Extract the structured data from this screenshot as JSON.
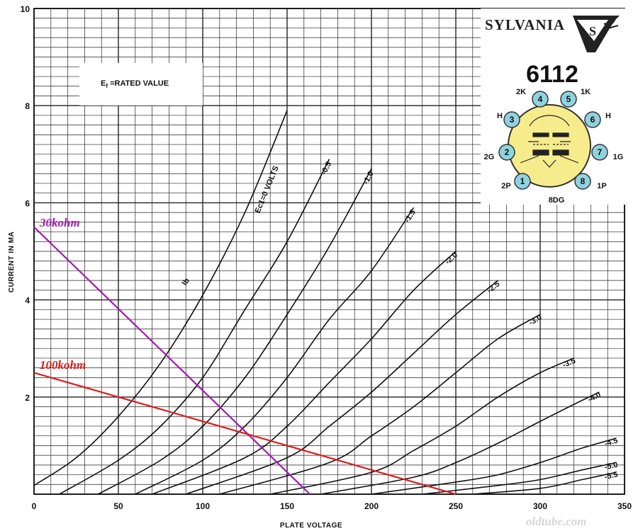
{
  "chart_data": {
    "type": "line",
    "xlabel": "PLATE VOLTAGE",
    "ylabel": "CURRENT IN MA",
    "xlim": [
      0,
      350
    ],
    "ylim": [
      0,
      10
    ],
    "x_ticks": [
      "0",
      "50",
      "100",
      "150",
      "200",
      "250",
      "300",
      "350"
    ],
    "y_ticks": [
      "2",
      "4",
      "6",
      "8",
      "10"
    ],
    "grid": true,
    "curve_family_label": "Ib",
    "note": {
      "main": "E",
      "sub": "f",
      "rest": " =RATED VALUE"
    },
    "series": [
      {
        "name": "Ec1=0 VOLTS",
        "x": [
          0,
          25,
          50,
          75,
          100,
          125,
          150
        ],
        "y": [
          0.18,
          0.75,
          1.6,
          2.7,
          4.1,
          5.8,
          7.9
        ]
      },
      {
        "name": "-0.5",
        "x": [
          15,
          50,
          75,
          100,
          125,
          150,
          175
        ],
        "y": [
          0,
          0.7,
          1.4,
          2.4,
          3.8,
          5.2,
          6.9
        ]
      },
      {
        "name": "-1.0",
        "x": [
          38,
          75,
          100,
          125,
          150,
          175,
          200
        ],
        "y": [
          0,
          0.7,
          1.4,
          2.4,
          3.7,
          5.1,
          6.7
        ]
      },
      {
        "name": "-1.5",
        "x": [
          60,
          100,
          125,
          150,
          175,
          200,
          225
        ],
        "y": [
          0,
          0.7,
          1.4,
          2.4,
          3.6,
          4.6,
          5.9
        ]
      },
      {
        "name": "-2.0",
        "x": [
          70,
          125,
          150,
          175,
          200,
          225,
          250
        ],
        "y": [
          0,
          0.75,
          1.4,
          2.3,
          3.2,
          4.2,
          5.0
        ]
      },
      {
        "name": "-2.5",
        "x": [
          90,
          150,
          175,
          200,
          225,
          250,
          275
        ],
        "y": [
          0,
          0.75,
          1.4,
          2.1,
          2.9,
          3.7,
          4.4
        ]
      },
      {
        "name": "-3.0",
        "x": [
          110,
          175,
          200,
          225,
          250,
          275,
          300
        ],
        "y": [
          0,
          0.65,
          1.2,
          1.8,
          2.5,
          3.2,
          3.7
        ]
      },
      {
        "name": "-3.5",
        "x": [
          140,
          200,
          225,
          250,
          275,
          300,
          320
        ],
        "y": [
          0,
          0.45,
          0.9,
          1.4,
          2.0,
          2.5,
          2.8
        ]
      },
      {
        "name": "-4.0",
        "x": [
          170,
          225,
          250,
          275,
          300,
          320,
          335
        ],
        "y": [
          0,
          0.35,
          0.65,
          1.05,
          1.5,
          1.85,
          2.1
        ]
      },
      {
        "name": "-4.5",
        "x": [
          200,
          250,
          275,
          300,
          325,
          345
        ],
        "y": [
          0,
          0.25,
          0.4,
          0.65,
          0.95,
          1.15
        ]
      },
      {
        "name": "-5.0",
        "x": [
          230,
          275,
          300,
          325,
          345
        ],
        "y": [
          0,
          0.18,
          0.3,
          0.5,
          0.65
        ]
      },
      {
        "name": "-5.5",
        "x": [
          260,
          300,
          325,
          345
        ],
        "y": [
          0,
          0.12,
          0.3,
          0.45
        ]
      }
    ],
    "load_lines": [
      {
        "name": "30kohm",
        "x": [
          0,
          163.5
        ],
        "y": [
          5.5,
          0
        ],
        "color": "#a21cb2"
      },
      {
        "name": "100kohm",
        "x": [
          0,
          250
        ],
        "y": [
          2.5,
          0
        ],
        "color": "#e01818"
      }
    ]
  },
  "datasheet": {
    "brand": "SYLVANIA",
    "brand_mark": "S",
    "tube_type": "6112",
    "base_code": "8DG",
    "pins": [
      {
        "num": "1",
        "label": "2P"
      },
      {
        "num": "2",
        "label": "2G"
      },
      {
        "num": "3",
        "label": "H"
      },
      {
        "num": "4",
        "label": "2K"
      },
      {
        "num": "5",
        "label": "1K"
      },
      {
        "num": "6",
        "label": "H"
      },
      {
        "num": "7",
        "label": "1G"
      },
      {
        "num": "8",
        "label": "1P"
      }
    ],
    "pin_fill": "#8fd3e0",
    "bulb_fill": "#f7ec8c"
  },
  "watermark": "oldtube.com"
}
